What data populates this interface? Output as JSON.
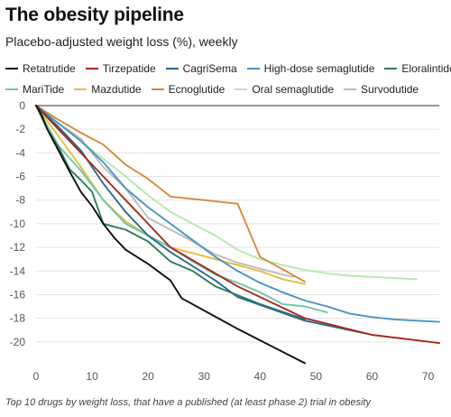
{
  "title": "The obesity pipeline",
  "subtitle": "Placebo-adjusted weight loss (%), weekly",
  "caption": "Top 10 drugs by weight loss, that have a published (at least phase 2) trial in obesity",
  "chart_data": {
    "type": "line",
    "xlim": [
      0,
      72
    ],
    "ylim": [
      -22,
      0
    ],
    "x_ticks": [
      0,
      10,
      20,
      30,
      40,
      50,
      60,
      70
    ],
    "y_ticks": [
      0,
      -2,
      -4,
      -6,
      -8,
      -10,
      -12,
      -14,
      -16,
      -18,
      -20
    ],
    "grid": "horizontal",
    "legend_position": "top",
    "series": [
      {
        "name": "Retatrutide",
        "color": "#111111",
        "points": [
          [
            0,
            0
          ],
          [
            1,
            -0.8
          ],
          [
            2,
            -2
          ],
          [
            4,
            -3.8
          ],
          [
            6,
            -5.6
          ],
          [
            8,
            -7.3
          ],
          [
            10,
            -8.5
          ],
          [
            12,
            -10
          ],
          [
            14,
            -11.2
          ],
          [
            16,
            -12.2
          ],
          [
            20,
            -13.4
          ],
          [
            24,
            -14.8
          ],
          [
            26,
            -16.3
          ],
          [
            36,
            -18.9
          ],
          [
            48,
            -21.8
          ]
        ]
      },
      {
        "name": "Tirzepatide",
        "color": "#a8281e",
        "points": [
          [
            0,
            0
          ],
          [
            4,
            -2
          ],
          [
            8,
            -4
          ],
          [
            12,
            -6
          ],
          [
            16,
            -8
          ],
          [
            20,
            -10
          ],
          [
            24,
            -12
          ],
          [
            36,
            -15.3
          ],
          [
            48,
            -18
          ],
          [
            60,
            -19.4
          ],
          [
            72,
            -20.1
          ]
        ]
      },
      {
        "name": "CagriSema",
        "color": "#2c6a8c",
        "points": [
          [
            0,
            0
          ],
          [
            4,
            -1.8
          ],
          [
            8,
            -3.8
          ],
          [
            12,
            -6.6
          ],
          [
            16,
            -9
          ],
          [
            20,
            -11
          ],
          [
            24,
            -12.4
          ],
          [
            28,
            -13.6
          ],
          [
            32,
            -14.8
          ],
          [
            36,
            -16.2
          ],
          [
            48,
            -18.2
          ],
          [
            60,
            -19.4
          ]
        ]
      },
      {
        "name": "High-dose semaglutide",
        "color": "#4a94c0",
        "points": [
          [
            0,
            0
          ],
          [
            4,
            -1.5
          ],
          [
            8,
            -3
          ],
          [
            12,
            -4.8
          ],
          [
            16,
            -7
          ],
          [
            20,
            -8.6
          ],
          [
            24,
            -10
          ],
          [
            28,
            -11.4
          ],
          [
            32,
            -12.8
          ],
          [
            36,
            -14
          ],
          [
            40,
            -15
          ],
          [
            44,
            -15.8
          ],
          [
            48,
            -16.5
          ],
          [
            52,
            -17
          ],
          [
            56,
            -17.6
          ],
          [
            60,
            -17.9
          ],
          [
            64,
            -18.1
          ],
          [
            68,
            -18.2
          ],
          [
            72,
            -18.3
          ]
        ]
      },
      {
        "name": "Eloralintide",
        "color": "#2e7d5b",
        "points": [
          [
            0,
            0
          ],
          [
            2,
            -2
          ],
          [
            4,
            -3.5
          ],
          [
            6,
            -5.4
          ],
          [
            8,
            -6.3
          ],
          [
            10,
            -7.3
          ],
          [
            12,
            -10
          ],
          [
            16,
            -10.5
          ],
          [
            20,
            -11.5
          ],
          [
            24,
            -13.2
          ],
          [
            28,
            -14
          ],
          [
            32,
            -15.3
          ],
          [
            40,
            -16.8
          ],
          [
            48,
            -18.1
          ]
        ]
      },
      {
        "name": "MariTide",
        "color": "#6fc7a6",
        "points": [
          [
            0,
            0
          ],
          [
            4,
            -3.4
          ],
          [
            8,
            -5.5
          ],
          [
            12,
            -8
          ],
          [
            16,
            -10
          ],
          [
            20,
            -11
          ],
          [
            24,
            -12
          ],
          [
            28,
            -13.2
          ],
          [
            32,
            -14.3
          ],
          [
            36,
            -15
          ],
          [
            40,
            -15.8
          ],
          [
            44,
            -16.8
          ],
          [
            48,
            -17
          ],
          [
            52,
            -17.5
          ]
        ]
      },
      {
        "name": "Mazdutide",
        "color": "#e8bd3c",
        "points": [
          [
            0,
            0
          ],
          [
            4,
            -2.6
          ],
          [
            8,
            -5.2
          ],
          [
            12,
            -8
          ],
          [
            16,
            -9.8
          ],
          [
            20,
            -11
          ],
          [
            24,
            -12
          ],
          [
            28,
            -12.5
          ],
          [
            32,
            -13
          ],
          [
            36,
            -13.5
          ],
          [
            40,
            -14
          ],
          [
            44,
            -14.7
          ],
          [
            48,
            -15.1
          ]
        ]
      },
      {
        "name": "Ecnoglutide",
        "color": "#d9893a",
        "points": [
          [
            0,
            0
          ],
          [
            4,
            -1.2
          ],
          [
            8,
            -2.3
          ],
          [
            12,
            -3.3
          ],
          [
            16,
            -5
          ],
          [
            20,
            -6.2
          ],
          [
            24,
            -7.7
          ],
          [
            30,
            -8
          ],
          [
            36,
            -8.3
          ],
          [
            40,
            -12.8
          ],
          [
            48,
            -14.9
          ]
        ]
      },
      {
        "name": "Oral semaglutide",
        "color": "#b8e6b0",
        "points": [
          [
            0,
            0
          ],
          [
            4,
            -1.5
          ],
          [
            8,
            -3
          ],
          [
            12,
            -4.5
          ],
          [
            16,
            -6
          ],
          [
            20,
            -7.6
          ],
          [
            24,
            -9
          ],
          [
            28,
            -10
          ],
          [
            32,
            -11
          ],
          [
            36,
            -12.2
          ],
          [
            40,
            -13
          ],
          [
            44,
            -13.5
          ],
          [
            48,
            -13.9
          ],
          [
            52,
            -14.2
          ],
          [
            56,
            -14.4
          ],
          [
            60,
            -14.5
          ],
          [
            64,
            -14.6
          ],
          [
            68,
            -14.7
          ]
        ]
      },
      {
        "name": "Survodutide",
        "color": "#bdbdbd",
        "points": [
          [
            0,
            0
          ],
          [
            4,
            -1.5
          ],
          [
            8,
            -2.8
          ],
          [
            12,
            -5.2
          ],
          [
            16,
            -7
          ],
          [
            20,
            -9.5
          ],
          [
            24,
            -10.5
          ],
          [
            28,
            -11.5
          ],
          [
            32,
            -12.6
          ],
          [
            36,
            -13.3
          ],
          [
            40,
            -13.8
          ],
          [
            44,
            -14.3
          ],
          [
            46,
            -14.5
          ]
        ]
      }
    ]
  }
}
